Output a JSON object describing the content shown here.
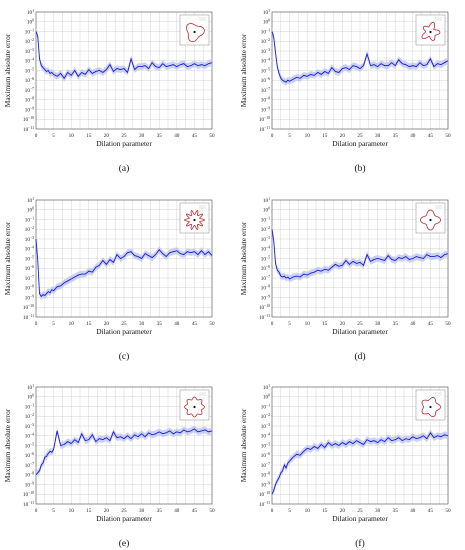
{
  "chart_data": [
    {
      "id": "a",
      "type": "line",
      "panel_label": "(a)",
      "xlabel": "Dilation parameter",
      "ylabel": "Maximum absolute error",
      "xlim": [
        0,
        50
      ],
      "ylim_log10": [
        -11,
        1
      ],
      "x_ticks": [
        "0",
        "5",
        "10",
        "15",
        "20",
        "25",
        "30",
        "35",
        "40",
        "45",
        "50"
      ],
      "y_ticks": [
        "10^-11",
        "10^-10",
        "10^-9",
        "10^-8",
        "10^-7",
        "10^-6",
        "10^-5",
        "10^-4",
        "10^-3",
        "10^-2",
        "10^-1",
        "10^0",
        "10^1"
      ],
      "grid": true,
      "inset_shape": "lobed-blob",
      "series": [
        {
          "x": [
            0,
            0.5,
            1,
            1.5,
            2,
            2.5,
            3,
            3.5,
            4,
            4.5,
            5,
            6,
            7,
            8,
            9,
            10,
            11,
            12,
            13,
            14,
            15,
            16,
            17,
            18,
            19,
            20,
            21,
            22,
            23,
            24,
            25,
            26,
            27,
            28,
            29,
            30,
            31,
            32,
            33,
            34,
            35,
            36,
            37,
            38,
            39,
            40,
            41,
            42,
            43,
            44,
            45,
            46,
            47,
            48,
            49,
            50
          ],
          "log10_error": [
            -1,
            -1.5,
            -3.8,
            -4.5,
            -4.7,
            -4.9,
            -5.1,
            -5.0,
            -5.3,
            -5.2,
            -5.4,
            -5.6,
            -5.3,
            -5.8,
            -5.2,
            -5.5,
            -5.0,
            -5.6,
            -5.2,
            -5.4,
            -4.9,
            -5.3,
            -5.1,
            -5.0,
            -5.2,
            -4.9,
            -4.4,
            -5.1,
            -4.8,
            -4.9,
            -4.8,
            -5.2,
            -3.8,
            -4.9,
            -4.6,
            -4.6,
            -4.5,
            -4.8,
            -4.2,
            -4.6,
            -4.7,
            -4.3,
            -4.6,
            -4.5,
            -4.4,
            -4.6,
            -4.4,
            -4.3,
            -4.6,
            -4.5,
            -4.3,
            -4.5,
            -4.4,
            -4.5,
            -4.3,
            -4.2
          ]
        }
      ]
    },
    {
      "id": "b",
      "type": "line",
      "panel_label": "(b)",
      "xlabel": "Dilation parameter",
      "ylabel": "Maximum absolute error",
      "xlim": [
        0,
        50
      ],
      "ylim_log10": [
        -11,
        1
      ],
      "x_ticks": [
        "0",
        "5",
        "10",
        "15",
        "20",
        "25",
        "30",
        "35",
        "40",
        "45",
        "50"
      ],
      "y_ticks": [
        "10^-11",
        "10^-10",
        "10^-9",
        "10^-8",
        "10^-7",
        "10^-6",
        "10^-5",
        "10^-4",
        "10^-3",
        "10^-2",
        "10^-1",
        "10^0",
        "10^1"
      ],
      "grid": true,
      "inset_shape": "irregular-star",
      "series": [
        {
          "x": [
            0,
            0.5,
            1,
            1.5,
            2,
            2.5,
            3,
            3.5,
            4,
            4.5,
            5,
            6,
            7,
            8,
            9,
            10,
            11,
            12,
            13,
            14,
            15,
            16,
            17,
            18,
            19,
            20,
            21,
            22,
            23,
            24,
            25,
            26,
            27,
            28,
            29,
            30,
            31,
            32,
            33,
            34,
            35,
            36,
            37,
            38,
            39,
            40,
            41,
            42,
            43,
            44,
            45,
            46,
            47,
            48,
            49,
            50
          ],
          "log10_error": [
            -1,
            -1.6,
            -3.2,
            -4.6,
            -5.3,
            -5.8,
            -6.0,
            -6.1,
            -6.2,
            -6.0,
            -6.1,
            -5.9,
            -5.7,
            -5.8,
            -5.5,
            -5.6,
            -5.4,
            -5.5,
            -5.2,
            -5.4,
            -5.1,
            -5.3,
            -4.7,
            -5.1,
            -5.2,
            -4.8,
            -4.7,
            -4.9,
            -4.5,
            -4.6,
            -4.8,
            -4.5,
            -3.3,
            -4.5,
            -4.4,
            -4.6,
            -4.3,
            -4.5,
            -4.5,
            -4.2,
            -4.5,
            -3.9,
            -4.3,
            -4.4,
            -4.6,
            -4.5,
            -4.6,
            -4.2,
            -4.5,
            -4.4,
            -3.8,
            -4.6,
            -4.3,
            -4.4,
            -4.2,
            -4.0
          ]
        }
      ]
    },
    {
      "id": "c",
      "type": "line",
      "panel_label": "(c)",
      "xlabel": "Dilation parameter",
      "ylabel": "Maximum absolute error",
      "xlim": [
        0,
        50
      ],
      "ylim_log10": [
        -11,
        1
      ],
      "x_ticks": [
        "0",
        "5",
        "10",
        "15",
        "20",
        "25",
        "30",
        "35",
        "40",
        "45",
        "50"
      ],
      "y_ticks": [
        "10^-11",
        "10^-10",
        "10^-9",
        "10^-8",
        "10^-7",
        "10^-6",
        "10^-5",
        "10^-4",
        "10^-3",
        "10^-2",
        "10^-1",
        "10^0",
        "10^1"
      ],
      "grid": true,
      "inset_shape": "spiky-star",
      "series": [
        {
          "x": [
            0,
            0.5,
            1,
            1.5,
            2,
            2.5,
            3,
            3.5,
            4,
            4.5,
            5,
            6,
            7,
            8,
            9,
            10,
            11,
            12,
            13,
            14,
            15,
            16,
            17,
            18,
            19,
            20,
            21,
            22,
            23,
            24,
            25,
            26,
            27,
            28,
            29,
            30,
            31,
            32,
            33,
            34,
            35,
            36,
            37,
            38,
            39,
            40,
            41,
            42,
            43,
            44,
            45,
            46,
            47,
            48,
            49,
            50
          ],
          "log10_error": [
            -3,
            -5.2,
            -8.6,
            -8.9,
            -8.7,
            -8.8,
            -8.6,
            -8.4,
            -8.5,
            -8.2,
            -8.3,
            -7.9,
            -7.8,
            -7.5,
            -7.3,
            -7.1,
            -6.9,
            -6.7,
            -6.6,
            -6.6,
            -6.3,
            -6.4,
            -5.9,
            -5.7,
            -5.2,
            -5.6,
            -5.1,
            -5.4,
            -4.6,
            -5.0,
            -4.8,
            -4.4,
            -4.3,
            -4.7,
            -4.8,
            -5.0,
            -4.5,
            -4.7,
            -4.9,
            -4.6,
            -4.1,
            -4.5,
            -4.8,
            -4.4,
            -4.3,
            -4.2,
            -4.5,
            -4.6,
            -4.3,
            -4.4,
            -4.3,
            -4.6,
            -4.2,
            -4.6,
            -4.3,
            -4.7
          ]
        }
      ]
    },
    {
      "id": "d",
      "type": "line",
      "panel_label": "(d)",
      "xlabel": "Dilation parameter",
      "ylabel": "Maximum absolute error",
      "xlim": [
        0,
        50
      ],
      "ylim_log10": [
        -11,
        1
      ],
      "x_ticks": [
        "0",
        "5",
        "10",
        "15",
        "20",
        "25",
        "30",
        "35",
        "40",
        "45",
        "50"
      ],
      "y_ticks": [
        "10^-11",
        "10^-10",
        "10^-9",
        "10^-8",
        "10^-7",
        "10^-6",
        "10^-5",
        "10^-4",
        "10^-3",
        "10^-2",
        "10^-1",
        "10^0",
        "10^1"
      ],
      "grid": true,
      "inset_shape": "four-point-star",
      "series": [
        {
          "x": [
            0,
            0.5,
            1,
            1.5,
            2,
            2.5,
            3,
            3.5,
            4,
            4.5,
            5,
            6,
            7,
            8,
            9,
            10,
            11,
            12,
            13,
            14,
            15,
            16,
            17,
            18,
            19,
            20,
            21,
            22,
            23,
            24,
            25,
            26,
            27,
            28,
            29,
            30,
            31,
            32,
            33,
            34,
            35,
            36,
            37,
            38,
            39,
            40,
            41,
            42,
            43,
            44,
            45,
            46,
            47,
            48,
            49,
            50
          ],
          "log10_error": [
            -2,
            -3.2,
            -5.5,
            -6.2,
            -6.4,
            -6.8,
            -6.9,
            -6.8,
            -7.0,
            -6.9,
            -7.1,
            -6.9,
            -6.8,
            -6.9,
            -6.6,
            -6.7,
            -6.5,
            -6.4,
            -6.2,
            -6.3,
            -6.1,
            -6.2,
            -5.9,
            -5.6,
            -5.8,
            -5.7,
            -5.2,
            -5.6,
            -5.3,
            -5.5,
            -5.4,
            -5.7,
            -4.6,
            -5.3,
            -5.1,
            -5.0,
            -5.1,
            -5.2,
            -4.7,
            -5.1,
            -5.2,
            -4.9,
            -5.0,
            -4.8,
            -5.1,
            -5.0,
            -4.8,
            -4.9,
            -5.0,
            -4.6,
            -4.8,
            -4.8,
            -4.7,
            -4.9,
            -4.6,
            -4.5
          ]
        }
      ]
    },
    {
      "id": "e",
      "type": "line",
      "panel_label": "(e)",
      "xlabel": "Dilation parameter",
      "ylabel": "Maximum absolute error",
      "xlim": [
        0,
        50
      ],
      "ylim_log10": [
        -11,
        1
      ],
      "x_ticks": [
        "0",
        "5",
        "10",
        "15",
        "20",
        "25",
        "30",
        "35",
        "40",
        "45",
        "50"
      ],
      "y_ticks": [
        "10^-11",
        "10^-10",
        "10^-9",
        "10^-8",
        "10^-7",
        "10^-6",
        "10^-5",
        "10^-4",
        "10^-3",
        "10^-2",
        "10^-1",
        "10^0",
        "10^1"
      ],
      "grid": true,
      "inset_shape": "wavy-circle",
      "series": [
        {
          "x": [
            0,
            0.5,
            1,
            1.5,
            2,
            2.5,
            3,
            3.5,
            4,
            4.5,
            5,
            6,
            7,
            8,
            9,
            10,
            11,
            12,
            13,
            14,
            15,
            16,
            17,
            18,
            19,
            20,
            21,
            22,
            23,
            24,
            25,
            26,
            27,
            28,
            29,
            30,
            31,
            32,
            33,
            34,
            35,
            36,
            37,
            38,
            39,
            40,
            41,
            42,
            43,
            44,
            45,
            46,
            47,
            48,
            49,
            50
          ],
          "log10_error": [
            -8,
            -7.8,
            -7.6,
            -7.0,
            -6.8,
            -6.2,
            -6.1,
            -5.8,
            -5.6,
            -5.7,
            -5.4,
            -3.5,
            -5.0,
            -4.9,
            -4.6,
            -4.8,
            -4.4,
            -4.7,
            -3.8,
            -4.5,
            -4.4,
            -3.9,
            -4.6,
            -4.3,
            -4.4,
            -4.2,
            -4.5,
            -3.6,
            -4.2,
            -4.1,
            -4.3,
            -4.0,
            -4.3,
            -3.9,
            -4.1,
            -3.8,
            -4.1,
            -3.7,
            -3.9,
            -3.8,
            -3.6,
            -3.8,
            -3.7,
            -3.5,
            -3.8,
            -3.6,
            -3.7,
            -3.4,
            -3.6,
            -3.5,
            -3.3,
            -3.6,
            -3.5,
            -3.4,
            -3.6,
            -3.5
          ]
        }
      ]
    },
    {
      "id": "f",
      "type": "line",
      "panel_label": "(f)",
      "xlabel": "Dilation parameter",
      "ylabel": "Maximum absolute error",
      "xlim": [
        0,
        50
      ],
      "ylim_log10": [
        -11,
        1
      ],
      "x_ticks": [
        "0",
        "5",
        "10",
        "15",
        "20",
        "25",
        "30",
        "35",
        "40",
        "45",
        "50"
      ],
      "y_ticks": [
        "10^-11",
        "10^-10",
        "10^-9",
        "10^-8",
        "10^-7",
        "10^-6",
        "10^-5",
        "10^-4",
        "10^-3",
        "10^-2",
        "10^-1",
        "10^0",
        "10^1"
      ],
      "grid": true,
      "inset_shape": "pentagon-star",
      "series": [
        {
          "x": [
            0,
            0.5,
            1,
            1.5,
            2,
            2.5,
            3,
            3.5,
            4,
            4.5,
            5,
            6,
            7,
            8,
            9,
            10,
            11,
            12,
            13,
            14,
            15,
            16,
            17,
            18,
            19,
            20,
            21,
            22,
            23,
            24,
            25,
            26,
            27,
            28,
            29,
            30,
            31,
            32,
            33,
            34,
            35,
            36,
            37,
            38,
            39,
            40,
            41,
            42,
            43,
            44,
            45,
            46,
            47,
            48,
            49,
            50
          ],
          "log10_error": [
            -10,
            -9.6,
            -9.0,
            -8.6,
            -8.3,
            -7.8,
            -7.6,
            -7.0,
            -7.3,
            -6.8,
            -6.6,
            -6.2,
            -5.9,
            -6.0,
            -5.6,
            -5.3,
            -5.4,
            -5.1,
            -5.3,
            -4.9,
            -5.2,
            -4.7,
            -5.0,
            -4.8,
            -5.0,
            -4.7,
            -4.9,
            -4.6,
            -4.8,
            -4.5,
            -4.7,
            -4.9,
            -4.4,
            -4.6,
            -4.5,
            -4.7,
            -4.4,
            -4.6,
            -4.2,
            -4.5,
            -4.4,
            -4.2,
            -4.5,
            -4.3,
            -4.4,
            -4.1,
            -4.3,
            -4.2,
            -4.0,
            -4.3,
            -3.7,
            -4.2,
            -4.0,
            -4.1,
            -3.9,
            -4.0
          ]
        }
      ]
    }
  ]
}
